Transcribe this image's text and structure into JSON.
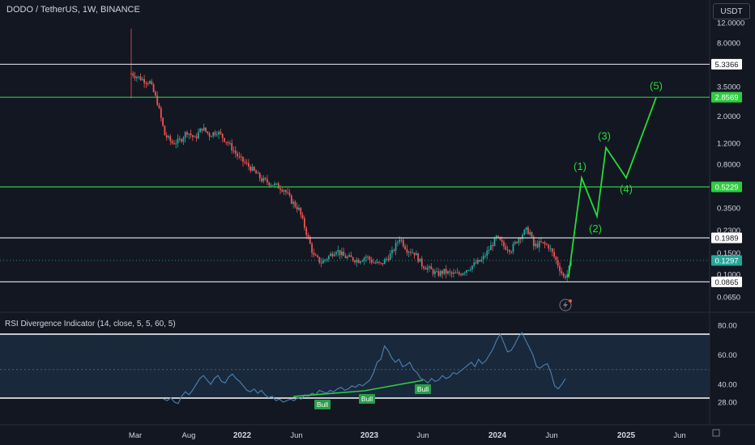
{
  "header": {
    "title": "DODO / TetherUS, 1W, BINANCE",
    "currency": "USDT"
  },
  "colors": {
    "background": "#131722",
    "bull_candle": "#26a69a",
    "bear_candle": "#ef5350",
    "level_white": "#d1d4dc",
    "level_green": "#2ecc40",
    "wave_green": "#22dd33",
    "rsi_line": "#4a82b4",
    "rsi_band": "#1c2a3e",
    "grid": "#1e2230"
  },
  "chart_data": [
    {
      "type": "candlestick",
      "yscale": "log",
      "ylim": [
        0.06,
        11
      ],
      "y_ticks": [
        "12.0000",
        "8.0000",
        "3.5000",
        "2.0000",
        "1.2000",
        "0.8000",
        "0.3500",
        "0.2300",
        "0.1500",
        "0.1000",
        "0.0650"
      ],
      "x_ticks": [
        "Mar",
        "Aug",
        "2022",
        "Jun",
        "2023",
        "Jun",
        "2024",
        "Jun",
        "2025",
        "Jun"
      ],
      "horizontal_levels": [
        {
          "label": "5.3366",
          "price": 5.3366,
          "color": "white"
        },
        {
          "label": "2.8569",
          "price": 2.8569,
          "color": "green"
        },
        {
          "label": "0.5229",
          "price": 0.5229,
          "color": "green"
        },
        {
          "label": "0.1989",
          "price": 0.1989,
          "color": "white"
        },
        {
          "label": "0.0865",
          "price": 0.0865,
          "color": "white"
        }
      ],
      "last_price": "0.1297",
      "trend_points": [
        [
          0,
          4.5
        ],
        [
          6,
          4.0
        ],
        [
          10,
          3.8
        ],
        [
          14,
          2.6
        ],
        [
          18,
          1.4
        ],
        [
          22,
          1.2
        ],
        [
          26,
          1.25
        ],
        [
          30,
          1.5
        ],
        [
          34,
          1.3
        ],
        [
          38,
          1.6
        ],
        [
          42,
          1.4
        ],
        [
          46,
          1.5
        ],
        [
          52,
          1.2
        ],
        [
          58,
          0.9
        ],
        [
          64,
          0.75
        ],
        [
          70,
          0.6
        ],
        [
          76,
          0.55
        ],
        [
          82,
          0.5
        ],
        [
          86,
          0.4
        ],
        [
          90,
          0.34
        ],
        [
          94,
          0.22
        ],
        [
          98,
          0.14
        ],
        [
          102,
          0.125
        ],
        [
          106,
          0.14
        ],
        [
          110,
          0.16
        ],
        [
          114,
          0.14
        ],
        [
          118,
          0.135
        ],
        [
          122,
          0.13
        ],
        [
          126,
          0.14
        ],
        [
          130,
          0.125
        ],
        [
          134,
          0.12
        ],
        [
          140,
          0.15
        ],
        [
          144,
          0.2
        ],
        [
          148,
          0.16
        ],
        [
          152,
          0.15
        ],
        [
          156,
          0.12
        ],
        [
          160,
          0.11
        ],
        [
          164,
          0.1
        ],
        [
          168,
          0.105
        ],
        [
          172,
          0.1
        ],
        [
          176,
          0.1
        ],
        [
          180,
          0.11
        ],
        [
          184,
          0.12
        ],
        [
          188,
          0.13
        ],
        [
          192,
          0.16
        ],
        [
          196,
          0.2
        ],
        [
          200,
          0.17
        ],
        [
          204,
          0.16
        ],
        [
          208,
          0.2
        ],
        [
          212,
          0.23
        ],
        [
          214,
          0.22
        ],
        [
          216,
          0.17
        ],
        [
          220,
          0.18
        ],
        [
          224,
          0.17
        ],
        [
          228,
          0.13
        ],
        [
          232,
          0.095
        ],
        [
          234,
          0.1
        ],
        [
          236,
          0.125
        ]
      ],
      "wave_projection": [
        {
          "label": "",
          "price": 0.095
        },
        {
          "label": "(1)",
          "price": 0.62
        },
        {
          "label": "(2)",
          "price": 0.3
        },
        {
          "label": "(3)",
          "price": 1.1
        },
        {
          "label": "(4)",
          "price": 0.62
        },
        {
          "label": "(5)",
          "price": 2.85
        }
      ]
    },
    {
      "type": "line",
      "name": "RSI Divergence Indicator (14, close, 5, 5, 60, 5)",
      "ylim": [
        20,
        85
      ],
      "y_ticks": [
        "80.00",
        "60.00",
        "40.00",
        "28.00"
      ],
      "band": [
        28,
        70
      ],
      "midline": 50,
      "values": [
        30,
        29,
        31,
        28,
        27,
        32,
        35,
        33,
        36,
        40,
        44,
        46,
        43,
        40,
        44,
        46,
        42,
        41,
        45,
        47,
        44,
        42,
        39,
        36,
        35,
        37,
        34,
        36,
        33,
        31,
        32,
        29,
        30,
        28,
        29,
        30,
        29,
        31,
        30,
        33,
        32,
        34,
        33,
        36,
        35,
        34,
        36,
        35,
        37,
        38,
        36,
        37,
        39,
        38,
        40,
        39,
        41,
        43,
        48,
        55,
        57,
        66,
        63,
        58,
        55,
        57,
        52,
        53,
        55,
        50,
        48,
        44,
        43,
        41,
        44,
        42,
        43,
        46,
        44,
        45,
        48,
        47,
        49,
        51,
        53,
        55,
        52,
        57,
        54,
        56,
        60,
        64,
        70,
        74,
        68,
        62,
        63,
        67,
        72,
        75,
        70,
        65,
        60,
        52,
        51,
        53,
        54,
        48,
        39,
        37,
        40,
        44
      ],
      "divergence_labels": [
        "Bull",
        "Bull",
        "Bull"
      ]
    }
  ]
}
